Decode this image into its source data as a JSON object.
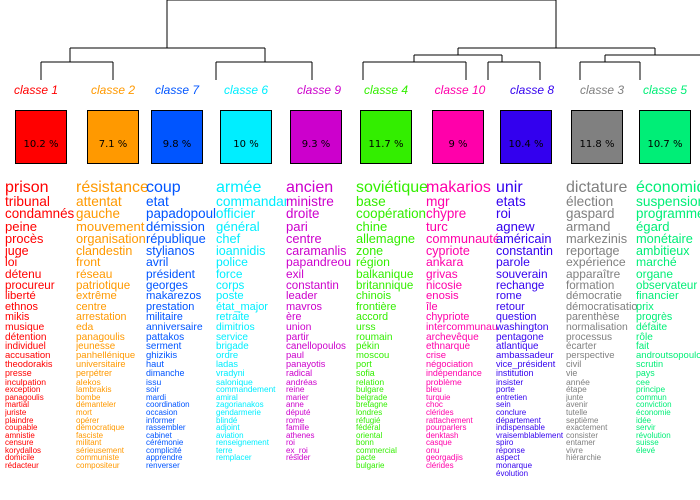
{
  "classes": [
    {
      "label": "classe 1",
      "pct": "10.2 %",
      "color": "#ff0000",
      "words": [
        "prison",
        "tribunal",
        "condamnés",
        "peine",
        "procès",
        "juge",
        "loi",
        "détenu",
        "procureur",
        "liberté",
        "ethnos",
        "mikis",
        "musique",
        "détention",
        "individuel",
        "accusation",
        "theodorakis",
        "presse",
        "inculpation",
        "exception",
        "panagoulis",
        "martial",
        "juriste",
        "plaindre",
        "coupable",
        "amnistie",
        "censure",
        "korydallos",
        "domicile",
        "rédacteur"
      ]
    },
    {
      "label": "classe 2",
      "pct": "7.1 %",
      "color": "#ff9900",
      "words": [
        "résistance",
        "attentat",
        "gauche",
        "mouvement",
        "organisation",
        "clandestin",
        "front",
        "réseau",
        "patriotique",
        "extrême",
        "centre",
        "arrestation",
        "eda",
        "panagoulis",
        "jeunesse",
        "panhellénique",
        "universitaire",
        "perpétrer",
        "alekos",
        "lambrakis",
        "bombe",
        "démanteler",
        "mort",
        "opérer",
        "démocratique",
        "fasciste",
        "militant",
        "sérieusement",
        "communiste",
        "compositeur"
      ]
    },
    {
      "label": "classe 7",
      "pct": "9.8 %",
      "color": "#0055ff",
      "words": [
        "coup",
        "etat",
        "papadopoulos",
        "démission",
        "république",
        "stylianos",
        "avril",
        "président",
        "georges",
        "makarezos",
        "prestation",
        "militaire",
        "anniversaire",
        "pattakos",
        "serment",
        "ghizikis",
        "haut",
        "dimanche",
        "issu",
        "soir",
        "mardi",
        "coordination",
        "occasion",
        "informer",
        "rassembler",
        "cabinet",
        "cérémonie",
        "complicité",
        "apprendre",
        "renverser"
      ]
    },
    {
      "label": "classe 6",
      "pct": "10 %",
      "color": "#00eeff",
      "words": [
        "armée",
        "commandant",
        "officier",
        "général",
        "chef",
        "ioannidis",
        "police",
        "force",
        "corps",
        "poste",
        "état_major",
        "retraite",
        "dimitrios",
        "service",
        "brigade",
        "ordre",
        "ladas",
        "vradyni",
        "salonique",
        "commandement",
        "amiral",
        "zagorianakos",
        "gendarmerie",
        "blindé",
        "adjoint",
        "aviation",
        "renseignement",
        "terre",
        "remplacer"
      ]
    },
    {
      "label": "classe 9",
      "pct": "9.3 %",
      "color": "#cc00cc",
      "words": [
        "ancien",
        "ministre",
        "droite",
        "pari",
        "centre",
        "caramanlis",
        "papandreou",
        "exil",
        "constantin",
        "leader",
        "mavros",
        "ère",
        "union",
        "partir",
        "canellopoulos",
        "paul",
        "panayotis",
        "radical",
        "andréas",
        "reine",
        "marier",
        "anne",
        "député",
        "rome",
        "famille",
        "athenes",
        "roi",
        "ex_roi",
        "résider"
      ]
    },
    {
      "label": "classe 4",
      "pct": "11.7 %",
      "color": "#33ee00",
      "words": [
        "soviétique",
        "base",
        "coopération",
        "chine",
        "allemagne",
        "zone",
        "région",
        "balkanique",
        "britannique",
        "chinois",
        "frontière",
        "accord",
        "urss",
        "roumain",
        "pékin",
        "moscou",
        "port",
        "sofia",
        "relation",
        "bulgare",
        "belgrade",
        "bretagne",
        "londres",
        "réfugié",
        "fédéral",
        "oriental",
        "bonn",
        "commercial",
        "pacte",
        "bulgarie"
      ]
    },
    {
      "label": "classe 10",
      "pct": "9 %",
      "color": "#ff00aa",
      "words": [
        "makarios",
        "mgr",
        "chypre",
        "turc",
        "communauté",
        "cypriote",
        "ankara",
        "grivas",
        "nicosie",
        "enosis",
        "île",
        "chypriote",
        "intercommunautaire",
        "archevêque",
        "ethnarque",
        "crise",
        "négociation",
        "indépendance",
        "problème",
        "bleu",
        "turquie",
        "choc",
        "clérides",
        "rattachement",
        "pourparlers",
        "denktash",
        "casque",
        "onu",
        "georgadjis",
        "clérides"
      ]
    },
    {
      "label": "classe 8",
      "pct": "10.4 %",
      "color": "#3300ee",
      "words": [
        "unir",
        "etats",
        "roi",
        "agnew",
        "américain",
        "constantin",
        "parole",
        "souverain",
        "rechange",
        "rome",
        "retour",
        "question",
        "washington",
        "pentagone",
        "atlantique",
        "ambassadeur",
        "vice_président",
        "institution",
        "insister",
        "porte",
        "entretien",
        "sein",
        "conclure",
        "département",
        "indispensable",
        "vraisemblablement",
        "spiro",
        "réponse",
        "aspect",
        "monarque",
        "évolution"
      ]
    },
    {
      "label": "classe 3",
      "pct": "11.8 %",
      "color": "#808080",
      "words": [
        "dictature",
        "élection",
        "gaspard",
        "armand",
        "markezinis",
        "reportage",
        "expérience",
        "apparaître",
        "formation",
        "démocratie",
        "démocratisation",
        "parenthèse",
        "normalisation",
        "processus",
        "écarter",
        "perspective",
        "civil",
        "vie",
        "année",
        "étape",
        "junte",
        "avenir",
        "tutelle",
        "septième",
        "exactement",
        "consister",
        "entamer",
        "vivre",
        "hiérarchie"
      ]
    },
    {
      "label": "classe 5",
      "pct": "10.7 %",
      "color": "#00ee77",
      "words": [
        "économique",
        "suspension",
        "programme",
        "égard",
        "monétaire",
        "ambitieux",
        "marché",
        "organe",
        "observateur",
        "financier",
        "prix",
        "progrès",
        "défaite",
        "rôle",
        "fait",
        "androutsopoulos",
        "scrutin",
        "pays",
        "cee",
        "principe",
        "commun",
        "conviction",
        "économie",
        "idée",
        "servir",
        "révolution",
        "suisse",
        "élevé"
      ]
    }
  ]
}
